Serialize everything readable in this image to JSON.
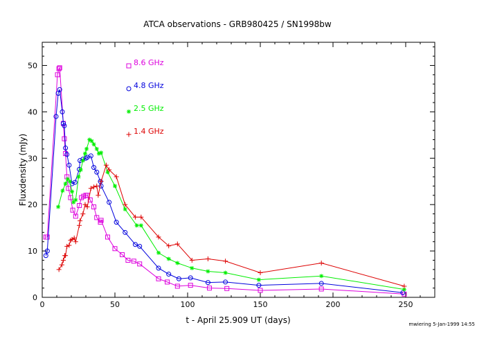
{
  "chart_data": {
    "type": "line",
    "title": "ATCA observations - GRB980425 / SN1998bw",
    "xlabel": "t - April 25.909 UT (days)",
    "ylabel": "Fluxdensity (mJy)",
    "xlim": [
      0,
      270
    ],
    "ylim": [
      0,
      55
    ],
    "xticks": [
      0,
      50,
      100,
      150,
      200,
      250
    ],
    "yticks": [
      0,
      10,
      20,
      30,
      40,
      50
    ],
    "grid": false,
    "legend_position": "top-left inside",
    "footer": "mwiering 5-Jan-1999 14:55",
    "series": [
      {
        "name": "8.6 GHz",
        "color": "#dd00dd",
        "marker": "square",
        "points": [
          [
            2.5,
            13.0
          ],
          [
            3.5,
            13.0
          ],
          [
            10.5,
            48.0
          ],
          [
            11.5,
            49.3
          ],
          [
            12.0,
            49.5
          ],
          [
            14.5,
            37.5
          ],
          [
            15.2,
            34.2
          ],
          [
            16.0,
            31.0
          ],
          [
            17.0,
            26.0
          ],
          [
            18.0,
            23.5
          ],
          [
            19.5,
            21.5
          ],
          [
            21.0,
            18.8
          ],
          [
            23.0,
            17.5
          ],
          [
            25.5,
            19.8
          ],
          [
            27.0,
            21.5
          ],
          [
            28.5,
            21.8
          ],
          [
            30.0,
            22.0
          ],
          [
            31.0,
            22.0
          ],
          [
            33.0,
            21.0
          ],
          [
            35.5,
            19.5
          ],
          [
            37.5,
            17.2
          ],
          [
            40.0,
            16.2
          ],
          [
            40.5,
            16.6
          ],
          [
            45.0,
            13.0
          ],
          [
            50.0,
            10.5
          ],
          [
            55.0,
            9.2
          ],
          [
            59.0,
            8.0
          ],
          [
            63.0,
            7.8
          ],
          [
            67.0,
            7.2
          ],
          [
            80.0,
            4.0
          ],
          [
            86.0,
            3.3
          ],
          [
            93.0,
            2.4
          ],
          [
            102.0,
            2.6
          ],
          [
            115.0,
            2.0
          ],
          [
            127.0,
            1.9
          ],
          [
            150.0,
            1.5
          ],
          [
            192.0,
            1.8
          ],
          [
            249.0,
            0.7
          ]
        ]
      },
      {
        "name": "4.8 GHz",
        "color": "#0000dd",
        "marker": "circle",
        "points": [
          [
            2.5,
            9.0
          ],
          [
            3.5,
            10.0
          ],
          [
            9.5,
            39.0
          ],
          [
            11.0,
            44.0
          ],
          [
            12.0,
            44.8
          ],
          [
            13.8,
            40.0
          ],
          [
            14.5,
            37.5
          ],
          [
            15.2,
            37.0
          ],
          [
            16.0,
            32.2
          ],
          [
            17.0,
            30.8
          ],
          [
            18.5,
            28.5
          ],
          [
            20.5,
            24.5
          ],
          [
            22.5,
            24.8
          ],
          [
            25.5,
            27.6
          ],
          [
            26.0,
            29.5
          ],
          [
            28.0,
            29.8
          ],
          [
            30.0,
            30.0
          ],
          [
            31.0,
            30.2
          ],
          [
            33.5,
            30.5
          ],
          [
            35.5,
            28.0
          ],
          [
            37.5,
            27.0
          ],
          [
            40.0,
            25.0
          ],
          [
            40.5,
            24.0
          ],
          [
            46.0,
            20.5
          ],
          [
            51.0,
            16.2
          ],
          [
            57.0,
            14.0
          ],
          [
            64.0,
            11.4
          ],
          [
            67.0,
            11.0
          ],
          [
            80.0,
            6.3
          ],
          [
            87.0,
            5.0
          ],
          [
            94.0,
            4.0
          ],
          [
            102.0,
            4.2
          ],
          [
            114.0,
            3.2
          ],
          [
            126.0,
            3.3
          ],
          [
            149.0,
            2.6
          ],
          [
            192.0,
            3.0
          ],
          [
            248.0,
            1.0
          ]
        ]
      },
      {
        "name": "2.5 GHz",
        "color": "#00ee00",
        "marker": "asterisk",
        "points": [
          [
            11.0,
            19.5
          ],
          [
            14.0,
            23.0
          ],
          [
            16.0,
            24.5
          ],
          [
            17.5,
            25.5
          ],
          [
            19.0,
            25.0
          ],
          [
            20.5,
            22.8
          ],
          [
            21.5,
            20.5
          ],
          [
            23.0,
            21.0
          ],
          [
            25.0,
            26.0
          ],
          [
            26.5,
            27.5
          ],
          [
            28.0,
            29.5
          ],
          [
            29.5,
            31.0
          ],
          [
            30.5,
            32.0
          ],
          [
            32.5,
            34.0
          ],
          [
            34.0,
            33.7
          ],
          [
            35.5,
            33.0
          ],
          [
            37.5,
            32.0
          ],
          [
            39.0,
            31.0
          ],
          [
            40.5,
            31.2
          ],
          [
            45.0,
            27.0
          ],
          [
            50.0,
            24.0
          ],
          [
            57.0,
            19.0
          ],
          [
            65.0,
            15.5
          ],
          [
            68.0,
            15.5
          ],
          [
            80.0,
            9.6
          ],
          [
            87.0,
            8.3
          ],
          [
            93.0,
            7.4
          ],
          [
            103.0,
            6.3
          ],
          [
            114.0,
            5.6
          ],
          [
            126.0,
            5.3
          ],
          [
            149.0,
            3.8
          ],
          [
            192.0,
            4.6
          ],
          [
            249.0,
            1.7
          ]
        ]
      },
      {
        "name": "1.4 GHz",
        "color": "#dd0000",
        "marker": "plus",
        "points": [
          [
            11.5,
            6.0
          ],
          [
            13.5,
            7.0
          ],
          [
            14.5,
            8.0
          ],
          [
            15.5,
            9.0
          ],
          [
            16.0,
            9.0
          ],
          [
            17.0,
            11.0
          ],
          [
            18.5,
            11.2
          ],
          [
            19.5,
            12.3
          ],
          [
            20.5,
            12.5
          ],
          [
            22.0,
            12.8
          ],
          [
            23.0,
            12.0
          ],
          [
            25.5,
            15.5
          ],
          [
            26.0,
            16.5
          ],
          [
            28.0,
            18.0
          ],
          [
            29.5,
            20.0
          ],
          [
            31.0,
            19.5
          ],
          [
            33.5,
            23.5
          ],
          [
            35.5,
            23.8
          ],
          [
            37.5,
            24.0
          ],
          [
            38.5,
            22.0
          ],
          [
            40.5,
            25.0
          ],
          [
            44.0,
            28.5
          ],
          [
            46.0,
            27.5
          ],
          [
            51.0,
            26.0
          ],
          [
            57.0,
            20.0
          ],
          [
            64.0,
            17.3
          ],
          [
            68.0,
            17.3
          ],
          [
            80.0,
            13.0
          ],
          [
            87.0,
            11.1
          ],
          [
            93.0,
            11.5
          ],
          [
            103.0,
            8.0
          ],
          [
            114.0,
            8.3
          ],
          [
            126.0,
            7.8
          ],
          [
            150.0,
            5.3
          ],
          [
            192.0,
            7.4
          ],
          [
            249.0,
            2.4
          ]
        ]
      }
    ]
  }
}
